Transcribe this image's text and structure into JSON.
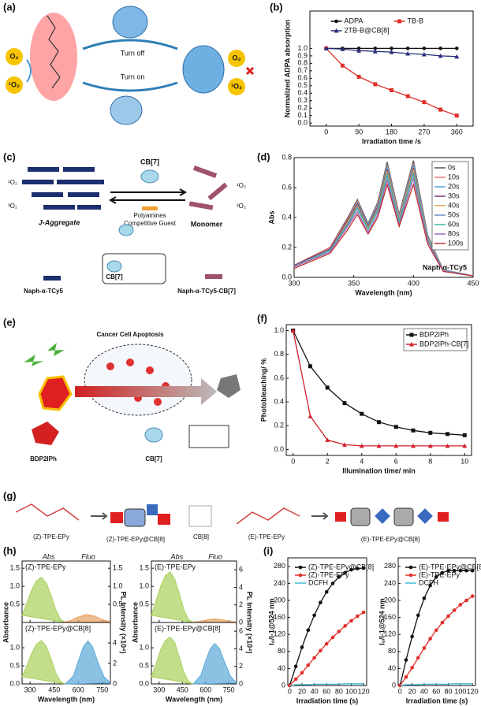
{
  "chart_data": [
    {
      "type": "line",
      "panel": "(b)",
      "xlabel": "Irradiation time /s",
      "ylabel": "Normalized ADPA absorption",
      "legend": "upper center",
      "xlim": [
        -45,
        405
      ],
      "xticks": [
        0,
        90,
        180,
        270,
        360
      ],
      "ylim": [
        -0.04,
        1.5
      ],
      "yticks": [
        {
          "value": 0,
          "label": "0.0"
        },
        0.1,
        0.2,
        0.3,
        0.4,
        0.5,
        0.6,
        0.7,
        0.8,
        0.9,
        {
          "value": 1,
          "label": "1.0"
        }
      ],
      "x": [
        0,
        45,
        90,
        135,
        180,
        225,
        270,
        315,
        360
      ],
      "series": [
        {
          "name": "ADPA",
          "color": "#111111",
          "marker": "circle",
          "values": [
            1.0,
            1.0,
            1.0,
            1.0,
            1.0,
            1.0,
            1.0,
            1.0,
            1.0
          ]
        },
        {
          "name": "TB-B",
          "color": "#e0302a",
          "marker": "square",
          "values": [
            1.0,
            0.77,
            0.62,
            0.52,
            0.44,
            0.36,
            0.28,
            0.18,
            0.1
          ]
        },
        {
          "name": "2TB-B@CB[8]",
          "color": "#2a2f7a",
          "marker": "triangle",
          "values": [
            1.0,
            0.99,
            0.97,
            0.96,
            0.95,
            0.93,
            0.92,
            0.9,
            0.89
          ]
        }
      ]
    },
    {
      "type": "line",
      "panel": "(d)",
      "xlabel": "Wavelength (nm)",
      "ylabel": "Abs",
      "annotation": "Naph-α-TCy5",
      "legend": "upper right",
      "xlim": [
        300,
        450
      ],
      "xticks": [
        300,
        350,
        400,
        450
      ],
      "ylim": [
        0,
        0.8
      ],
      "yticks": [
        {
          "value": 0,
          "label": "0.0"
        },
        0.2,
        0.4,
        0.6,
        0.8
      ],
      "x": [
        300,
        330,
        345,
        353,
        362,
        370,
        378,
        388,
        400,
        412,
        425,
        450
      ],
      "series": [
        {
          "name": "0s",
          "color": "#555555",
          "values": [
            0.08,
            0.2,
            0.4,
            0.52,
            0.36,
            0.5,
            0.77,
            0.42,
            0.78,
            0.28,
            0.05,
            0.01
          ]
        },
        {
          "name": "10s",
          "color": "#e87878",
          "values": [
            0.08,
            0.2,
            0.39,
            0.51,
            0.35,
            0.49,
            0.75,
            0.41,
            0.76,
            0.27,
            0.05,
            0.01
          ]
        },
        {
          "name": "20s",
          "color": "#4fa3d8",
          "values": [
            0.08,
            0.19,
            0.38,
            0.5,
            0.35,
            0.48,
            0.74,
            0.4,
            0.75,
            0.27,
            0.05,
            0.01
          ]
        },
        {
          "name": "30s",
          "color": "#7a3a6a",
          "values": [
            0.08,
            0.19,
            0.38,
            0.49,
            0.34,
            0.47,
            0.72,
            0.39,
            0.73,
            0.26,
            0.05,
            0.01
          ]
        },
        {
          "name": "40s",
          "color": "#d9a840",
          "values": [
            0.07,
            0.18,
            0.37,
            0.48,
            0.33,
            0.46,
            0.71,
            0.39,
            0.72,
            0.26,
            0.05,
            0.01
          ]
        },
        {
          "name": "50s",
          "color": "#6f8fc4",
          "values": [
            0.07,
            0.18,
            0.36,
            0.47,
            0.32,
            0.45,
            0.69,
            0.38,
            0.7,
            0.25,
            0.05,
            0.01
          ]
        },
        {
          "name": "60s",
          "color": "#3fb0a0",
          "values": [
            0.07,
            0.18,
            0.35,
            0.46,
            0.32,
            0.44,
            0.68,
            0.37,
            0.69,
            0.25,
            0.04,
            0.01
          ]
        },
        {
          "name": "80s",
          "color": "#9a6ac0",
          "values": [
            0.07,
            0.17,
            0.34,
            0.44,
            0.3,
            0.42,
            0.65,
            0.35,
            0.66,
            0.24,
            0.04,
            0.01
          ]
        },
        {
          "name": "100s",
          "color": "#c03030",
          "values": [
            0.06,
            0.16,
            0.32,
            0.42,
            0.29,
            0.4,
            0.62,
            0.34,
            0.62,
            0.22,
            0.04,
            0.01
          ]
        }
      ]
    },
    {
      "type": "line",
      "panel": "(f)",
      "xlabel": "Illumination time/ min",
      "ylabel": "Photobleaching/ %",
      "legend": "upper right",
      "xlim": [
        -0.4,
        10.4
      ],
      "xticks": [
        0,
        2,
        4,
        6,
        8,
        10
      ],
      "ylim": [
        -0.05,
        1.05
      ],
      "yticks": [
        {
          "value": 0,
          "label": "0.0"
        },
        0.2,
        0.4,
        0.6,
        0.8,
        {
          "value": 1,
          "label": "1.0"
        }
      ],
      "x": [
        0,
        1,
        2,
        3,
        4,
        5,
        6,
        7,
        8,
        9,
        10
      ],
      "series": [
        {
          "name": "BDP2IPh",
          "color": "#111111",
          "marker": "square",
          "values": [
            1.0,
            0.7,
            0.52,
            0.39,
            0.3,
            0.23,
            0.19,
            0.16,
            0.14,
            0.13,
            0.12
          ]
        },
        {
          "name": "BDP2IPh-CB[7]",
          "color": "#d0202a",
          "marker": "triangle",
          "values": [
            1.0,
            0.28,
            0.08,
            0.04,
            0.03,
            0.03,
            0.03,
            0.03,
            0.03,
            0.03,
            0.03
          ]
        }
      ]
    },
    {
      "type": "area",
      "panel": "(h)",
      "label": "(Z)-TPE-EPy",
      "header_abs": "Abs",
      "header_fluo": "Fluo",
      "ylabel": "Absorbance",
      "y2label": "PL Intensity (×10⁴)",
      "xlim": [
        250,
        800
      ],
      "xticks": [
        300,
        450,
        600,
        750
      ],
      "ylim": [
        0,
        1.7
      ],
      "yticks": [
        0.5,
        {
          "value": 1,
          "label": "1.0"
        },
        1.5
      ],
      "y2lim": [
        0,
        1.7
      ],
      "y2ticks": [
        0.5,
        {
          "value": 1,
          "label": "1.0"
        },
        1.5
      ],
      "series": [
        {
          "color": "#a8d05a",
          "x": [
            250,
            280,
            310,
            340,
            370,
            400,
            430,
            460,
            490,
            520
          ],
          "values": [
            0.2,
            0.55,
            0.9,
            1.15,
            1.25,
            1.1,
            0.75,
            0.35,
            0.08,
            0.0
          ]
        },
        {
          "color": "#e8a060",
          "axis": "y2",
          "x": [
            500,
            550,
            600,
            650,
            700,
            750,
            800
          ],
          "values": [
            0.0,
            0.05,
            0.15,
            0.22,
            0.18,
            0.08,
            0.02
          ]
        }
      ]
    },
    {
      "type": "area",
      "label": "(Z)-TPE-EPy@CB[8]",
      "xlabel": "Wavelength (nm)",
      "xlim": [
        250,
        800
      ],
      "xticks": [
        300,
        450,
        600,
        750
      ],
      "ylim": [
        0,
        1.7
      ],
      "yticks": [
        {
          "value": 0,
          "label": "0.0"
        },
        0.5,
        {
          "value": 1,
          "label": "1.0"
        }
      ],
      "y2lim": [
        0,
        6
      ],
      "y2ticks": [
        0,
        2,
        4
      ],
      "series": [
        {
          "color": "#a8d05a",
          "x": [
            250,
            280,
            310,
            340,
            370,
            400,
            430,
            460,
            490,
            520
          ],
          "values": [
            0.2,
            0.5,
            0.85,
            1.1,
            1.2,
            1.05,
            0.7,
            0.3,
            0.06,
            0.0
          ]
        },
        {
          "color": "#5aa8d8",
          "axis": "y2",
          "x": [
            520,
            570,
            600,
            630,
            660,
            690,
            720,
            760,
            800
          ],
          "values": [
            0,
            0.8,
            2.2,
            3.6,
            4.2,
            3.6,
            2.2,
            0.7,
            0.1
          ]
        }
      ]
    },
    {
      "type": "area",
      "label": "(E)-TPE-EPy",
      "header_abs": "Abs",
      "header_fluo": "Fluo",
      "ylabel": "Absorbance",
      "y2label": "PL Intensity (×10⁴)",
      "xlim": [
        250,
        800
      ],
      "xticks": [
        300,
        450,
        600,
        750
      ],
      "ylim": [
        0,
        1.7
      ],
      "yticks": [
        0.5,
        {
          "value": 1,
          "label": "1.0"
        },
        1.5
      ],
      "y2lim": [
        0,
        7
      ],
      "y2ticks": [
        0,
        2,
        4,
        6
      ],
      "series": [
        {
          "color": "#a8d05a",
          "x": [
            250,
            280,
            310,
            340,
            370,
            400,
            430,
            460,
            490,
            520
          ],
          "values": [
            0.2,
            0.6,
            1.0,
            1.3,
            1.4,
            1.2,
            0.8,
            0.35,
            0.08,
            0.0
          ]
        },
        {
          "color": "#e8a060",
          "axis": "y2",
          "x": [
            500,
            550,
            600,
            650,
            700,
            750,
            800
          ],
          "values": [
            0,
            0.1,
            0.25,
            0.4,
            0.35,
            0.15,
            0.05
          ]
        }
      ]
    },
    {
      "type": "area",
      "label": "(E)-TPE-EPy@CB[8]",
      "xlabel": "Wavelength (nm)",
      "xlim": [
        250,
        800
      ],
      "xticks": [
        300,
        450,
        600,
        750
      ],
      "ylim": [
        0,
        1.7
      ],
      "yticks": [
        {
          "value": 0,
          "label": "0.0"
        },
        0.5,
        {
          "value": 1,
          "label": "1.0"
        }
      ],
      "y2lim": [
        0,
        7
      ],
      "y2ticks": [
        0,
        2,
        4,
        6
      ],
      "series": [
        {
          "color": "#a8d05a",
          "x": [
            250,
            280,
            310,
            340,
            370,
            400,
            430,
            460,
            490,
            520
          ],
          "values": [
            0.2,
            0.55,
            0.95,
            1.2,
            1.3,
            1.15,
            0.75,
            0.32,
            0.07,
            0.0
          ]
        },
        {
          "color": "#5aa8d8",
          "axis": "y2",
          "x": [
            520,
            570,
            600,
            630,
            660,
            690,
            720,
            760,
            800
          ],
          "values": [
            0,
            1.0,
            2.6,
            4.0,
            4.6,
            4.0,
            2.6,
            0.9,
            0.1
          ]
        }
      ]
    },
    {
      "type": "line",
      "panel": "(i)",
      "xlabel": "Irradiation time (s)",
      "ylabel": "I₀/I-1@524 nm",
      "legend": "upper left",
      "xlim": [
        -3,
        125
      ],
      "xticks": [
        0,
        20,
        40,
        60,
        80,
        100,
        120
      ],
      "ylim": [
        0,
        300
      ],
      "yticks": [
        0,
        40,
        80,
        120,
        160,
        200,
        240,
        280
      ],
      "x": [
        0,
        10,
        20,
        30,
        40,
        50,
        60,
        70,
        80,
        90,
        100,
        110,
        120
      ],
      "series": [
        {
          "name": "(Z)-TPE-EPy@CB[8]",
          "color": "#111111",
          "marker": "circle",
          "values": [
            0,
            45,
            90,
            130,
            165,
            195,
            220,
            240,
            255,
            265,
            272,
            275,
            276
          ]
        },
        {
          "name": "(Z)-TPE-EPy",
          "color": "#e0302a",
          "marker": "circle",
          "values": [
            0,
            15,
            30,
            48,
            65,
            82,
            98,
            113,
            127,
            140,
            152,
            163,
            172
          ]
        },
        {
          "name": "DCFH",
          "color": "#40b8d0",
          "values": [
            0,
            2,
            2,
            2,
            3,
            3,
            3,
            3,
            3,
            4,
            4,
            4,
            4
          ]
        }
      ]
    },
    {
      "type": "line",
      "xlabel": "Irradiation time (s)",
      "ylabel": "I₀/I-1@524 nm",
      "legend": "upper left",
      "xlim": [
        -3,
        125
      ],
      "xticks": [
        0,
        20,
        40,
        60,
        80,
        100,
        120
      ],
      "ylim": [
        0,
        300
      ],
      "yticks": [
        0,
        40,
        80,
        120,
        160,
        200,
        240,
        280
      ],
      "x": [
        0,
        10,
        20,
        30,
        40,
        50,
        60,
        70,
        80,
        90,
        100,
        110,
        120
      ],
      "series": [
        {
          "name": "(E)-TPE-EPy@CB[8]",
          "color": "#111111",
          "marker": "circle",
          "values": [
            0,
            60,
            115,
            165,
            205,
            235,
            255,
            265,
            270,
            270,
            270,
            270,
            270
          ]
        },
        {
          "name": "(E)-TPE-EPy",
          "color": "#e0302a",
          "marker": "circle",
          "values": [
            0,
            20,
            42,
            65,
            88,
            110,
            130,
            148,
            163,
            177,
            190,
            200,
            210
          ]
        },
        {
          "name": "DCFH",
          "color": "#40b8d0",
          "values": [
            0,
            2,
            2,
            2,
            3,
            3,
            3,
            3,
            3,
            4,
            4,
            4,
            4
          ]
        }
      ]
    }
  ],
  "diagrams": {
    "a": {
      "panel": "(a)",
      "turn_off": "Turn off",
      "turn_on": "Turn on",
      "o2_left": "O₂",
      "singlet_left": "¹O₂",
      "o2_right": "O₂",
      "singlet_right": "¹O₂"
    },
    "c": {
      "panel": "(c)",
      "aggregate": "J-Aggregate",
      "cb7": "CB[7]",
      "polyamines": "Polyamines",
      "competitive": "Competitive Guest",
      "monomer": "Monomer",
      "naph": "Naph-α-TCy5",
      "cb7_label": "CB[7]",
      "complex": "Naph-α-TCy5-CB[7]",
      "singlet_left": "¹O₂",
      "triplet_left": "³O₂",
      "singlet_right": "¹O₂",
      "triplet_right": "³O₂"
    },
    "e": {
      "panel": "(e)",
      "apoptosis": "Cancer Cell Apoptosis",
      "compound": "BDP2IPh",
      "cb7": "CB[7]"
    },
    "g": {
      "panel": "(g)",
      "z_free": "(Z)-TPE-EPy",
      "z_complex": "(Z)-TPE-EPy@CB[8]",
      "cb8": "CB[8]",
      "e_free": "(E)-TPE-EPy",
      "e_complex": "(E)-TPE-EPy@CB[8]"
    }
  }
}
